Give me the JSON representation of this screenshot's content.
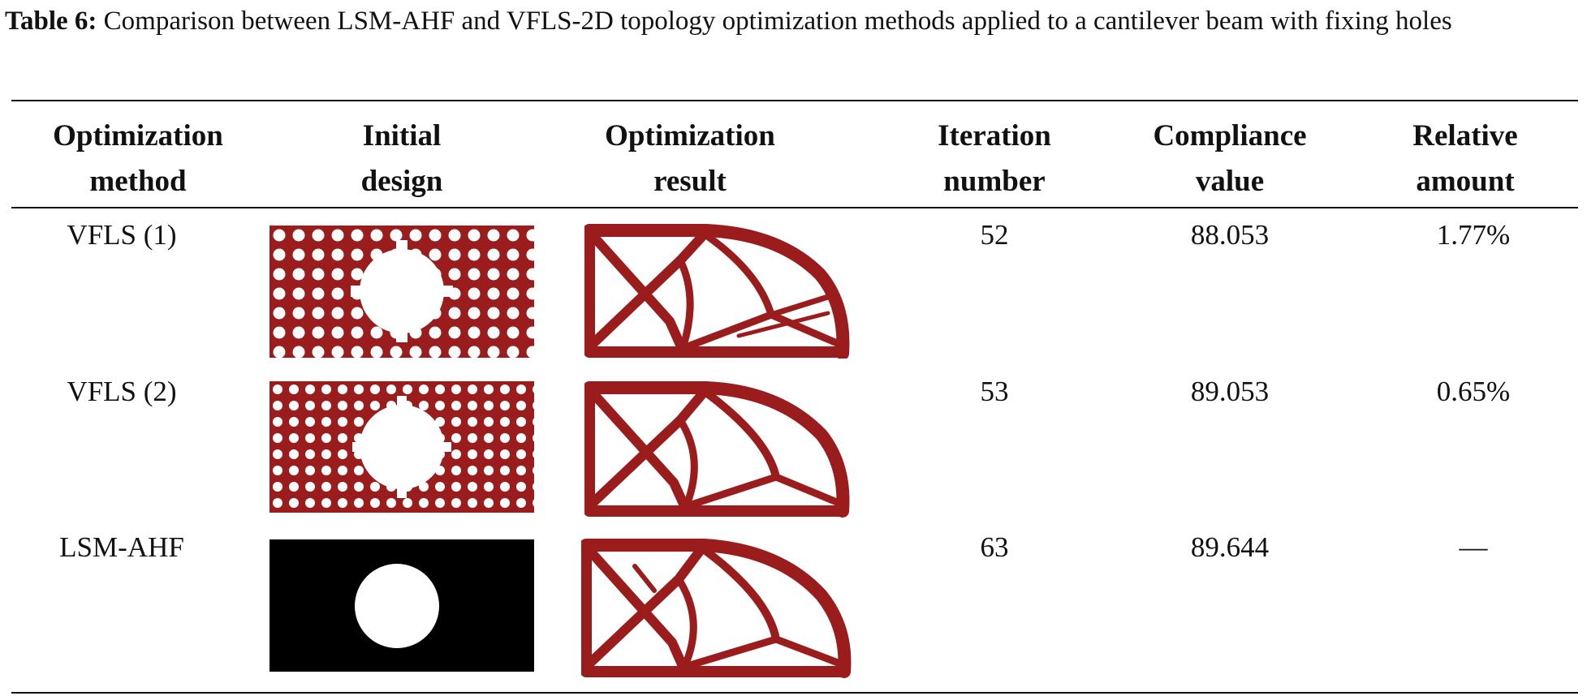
{
  "caption": {
    "label": "Table 6:",
    "text": "Comparison between LSM-AHF and VFLS-2D topology optimization methods applied to a cantilever beam with fixing holes"
  },
  "headers": [
    {
      "line1": "Optimization",
      "line2": "method"
    },
    {
      "line1": "Initial",
      "line2": "design"
    },
    {
      "line1": "Optimization",
      "line2": "result"
    },
    {
      "line1": "Iteration",
      "line2": "number"
    },
    {
      "line1": "Compliance",
      "line2": "value"
    },
    {
      "line1": "Relative",
      "line2": "amount"
    }
  ],
  "rows": [
    {
      "method": "VFLS (1)",
      "iterations": "52",
      "compliance": "88.053",
      "relative": "1.77%"
    },
    {
      "method": "VFLS (2)",
      "iterations": "53",
      "compliance": "89.053",
      "relative": "0.65%"
    },
    {
      "method": "LSM-AHF",
      "iterations": "63",
      "compliance": "89.644",
      "relative": "—"
    }
  ],
  "colors": {
    "material": "#9b1c1c",
    "void": "#ffffff",
    "lsm_initial": "#000000"
  }
}
